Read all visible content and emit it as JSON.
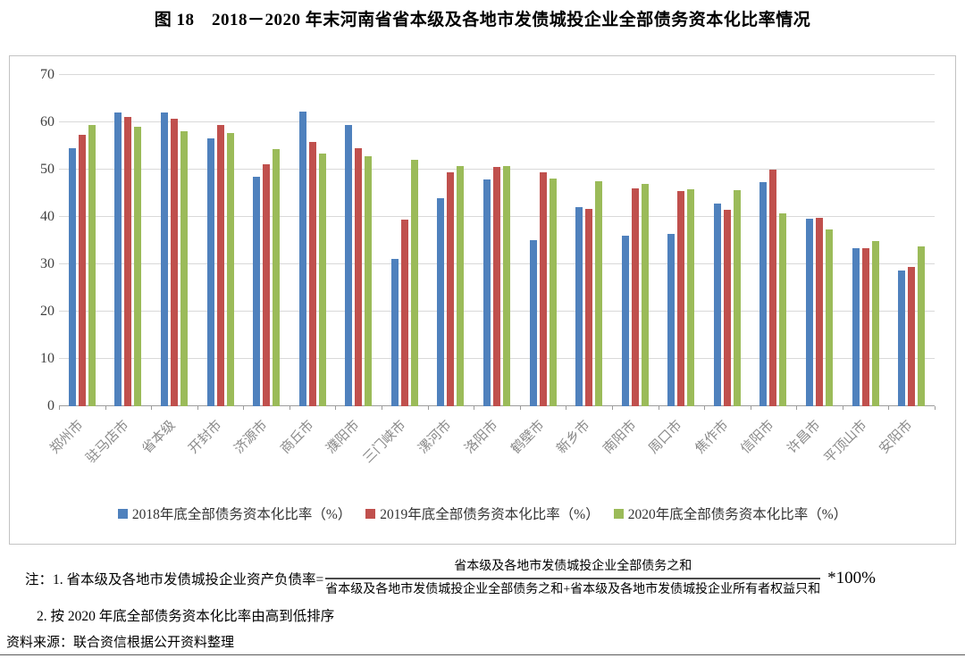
{
  "title": "图 18　2018－2020 年末河南省省本级及各地市发债城投企业全部债务资本化比率情况",
  "chart_data": {
    "type": "bar",
    "title": "图 18　2018－2020 年末河南省省本级及各地市发债城投企业全部债务资本化比率情况",
    "categories": [
      "郑州市",
      "驻马店市",
      "省本级",
      "开封市",
      "济源市",
      "商丘市",
      "濮阳市",
      "三门峡市",
      "漯河市",
      "洛阳市",
      "鹤壁市",
      "新乡市",
      "南阳市",
      "周口市",
      "焦作市",
      "信阳市",
      "许昌市",
      "平顶山市",
      "安阳市"
    ],
    "series": [
      {
        "name": "2018年底全部债务资本化比率（%）",
        "color": "#4F81BD",
        "values": [
          54.5,
          62.0,
          62.1,
          56.6,
          48.5,
          62.3,
          59.4,
          31.2,
          43.9,
          47.9,
          35.1,
          42.0,
          36.1,
          36.5,
          42.8,
          47.4,
          39.6,
          33.4,
          28.7
        ]
      },
      {
        "name": "2019年底全部债务资本化比率（%）",
        "color": "#C0504D",
        "values": [
          57.3,
          61.2,
          60.7,
          59.4,
          51.2,
          55.9,
          54.6,
          39.5,
          49.4,
          50.6,
          49.5,
          41.7,
          46.0,
          45.5,
          41.6,
          50.1,
          39.8,
          33.4,
          29.4
        ]
      },
      {
        "name": "2020年底全部债务资本化比率（%）",
        "color": "#9BBB59",
        "values": [
          59.5,
          59.0,
          58.2,
          57.7,
          54.3,
          53.4,
          52.9,
          52.1,
          50.8,
          50.7,
          48.1,
          47.6,
          47.0,
          45.9,
          45.6,
          40.8,
          37.3,
          35.0,
          33.7
        ]
      }
    ],
    "xlabel": "",
    "ylabel": "",
    "ylim": [
      0,
      70
    ],
    "yticks": [
      0,
      10,
      20,
      30,
      40,
      50,
      60,
      70
    ],
    "grid": true,
    "legend_position": "bottom"
  },
  "notes": {
    "note1_prefix": "注：1. 省本级及各地市发债城投企业资产负债率=",
    "note1_numerator": "省本级及各地市发债城投企业全部债务之和",
    "note1_denominator": "省本级及各地市发债城投企业全部债务之和+省本级及各地市发债城投企业所有者权益只和",
    "note1_suffix": "*100%",
    "note2": "2. 按 2020 年底全部债务资本化比率由高到低排序"
  },
  "source": "资料来源：联合资信根据公开资料整理",
  "colors": {
    "series_2018": "#4F81BD",
    "series_2019": "#C0504D",
    "series_2020": "#9BBB59",
    "gridline": "#d9d9d9",
    "axis_line": "#9c9c9c"
  }
}
